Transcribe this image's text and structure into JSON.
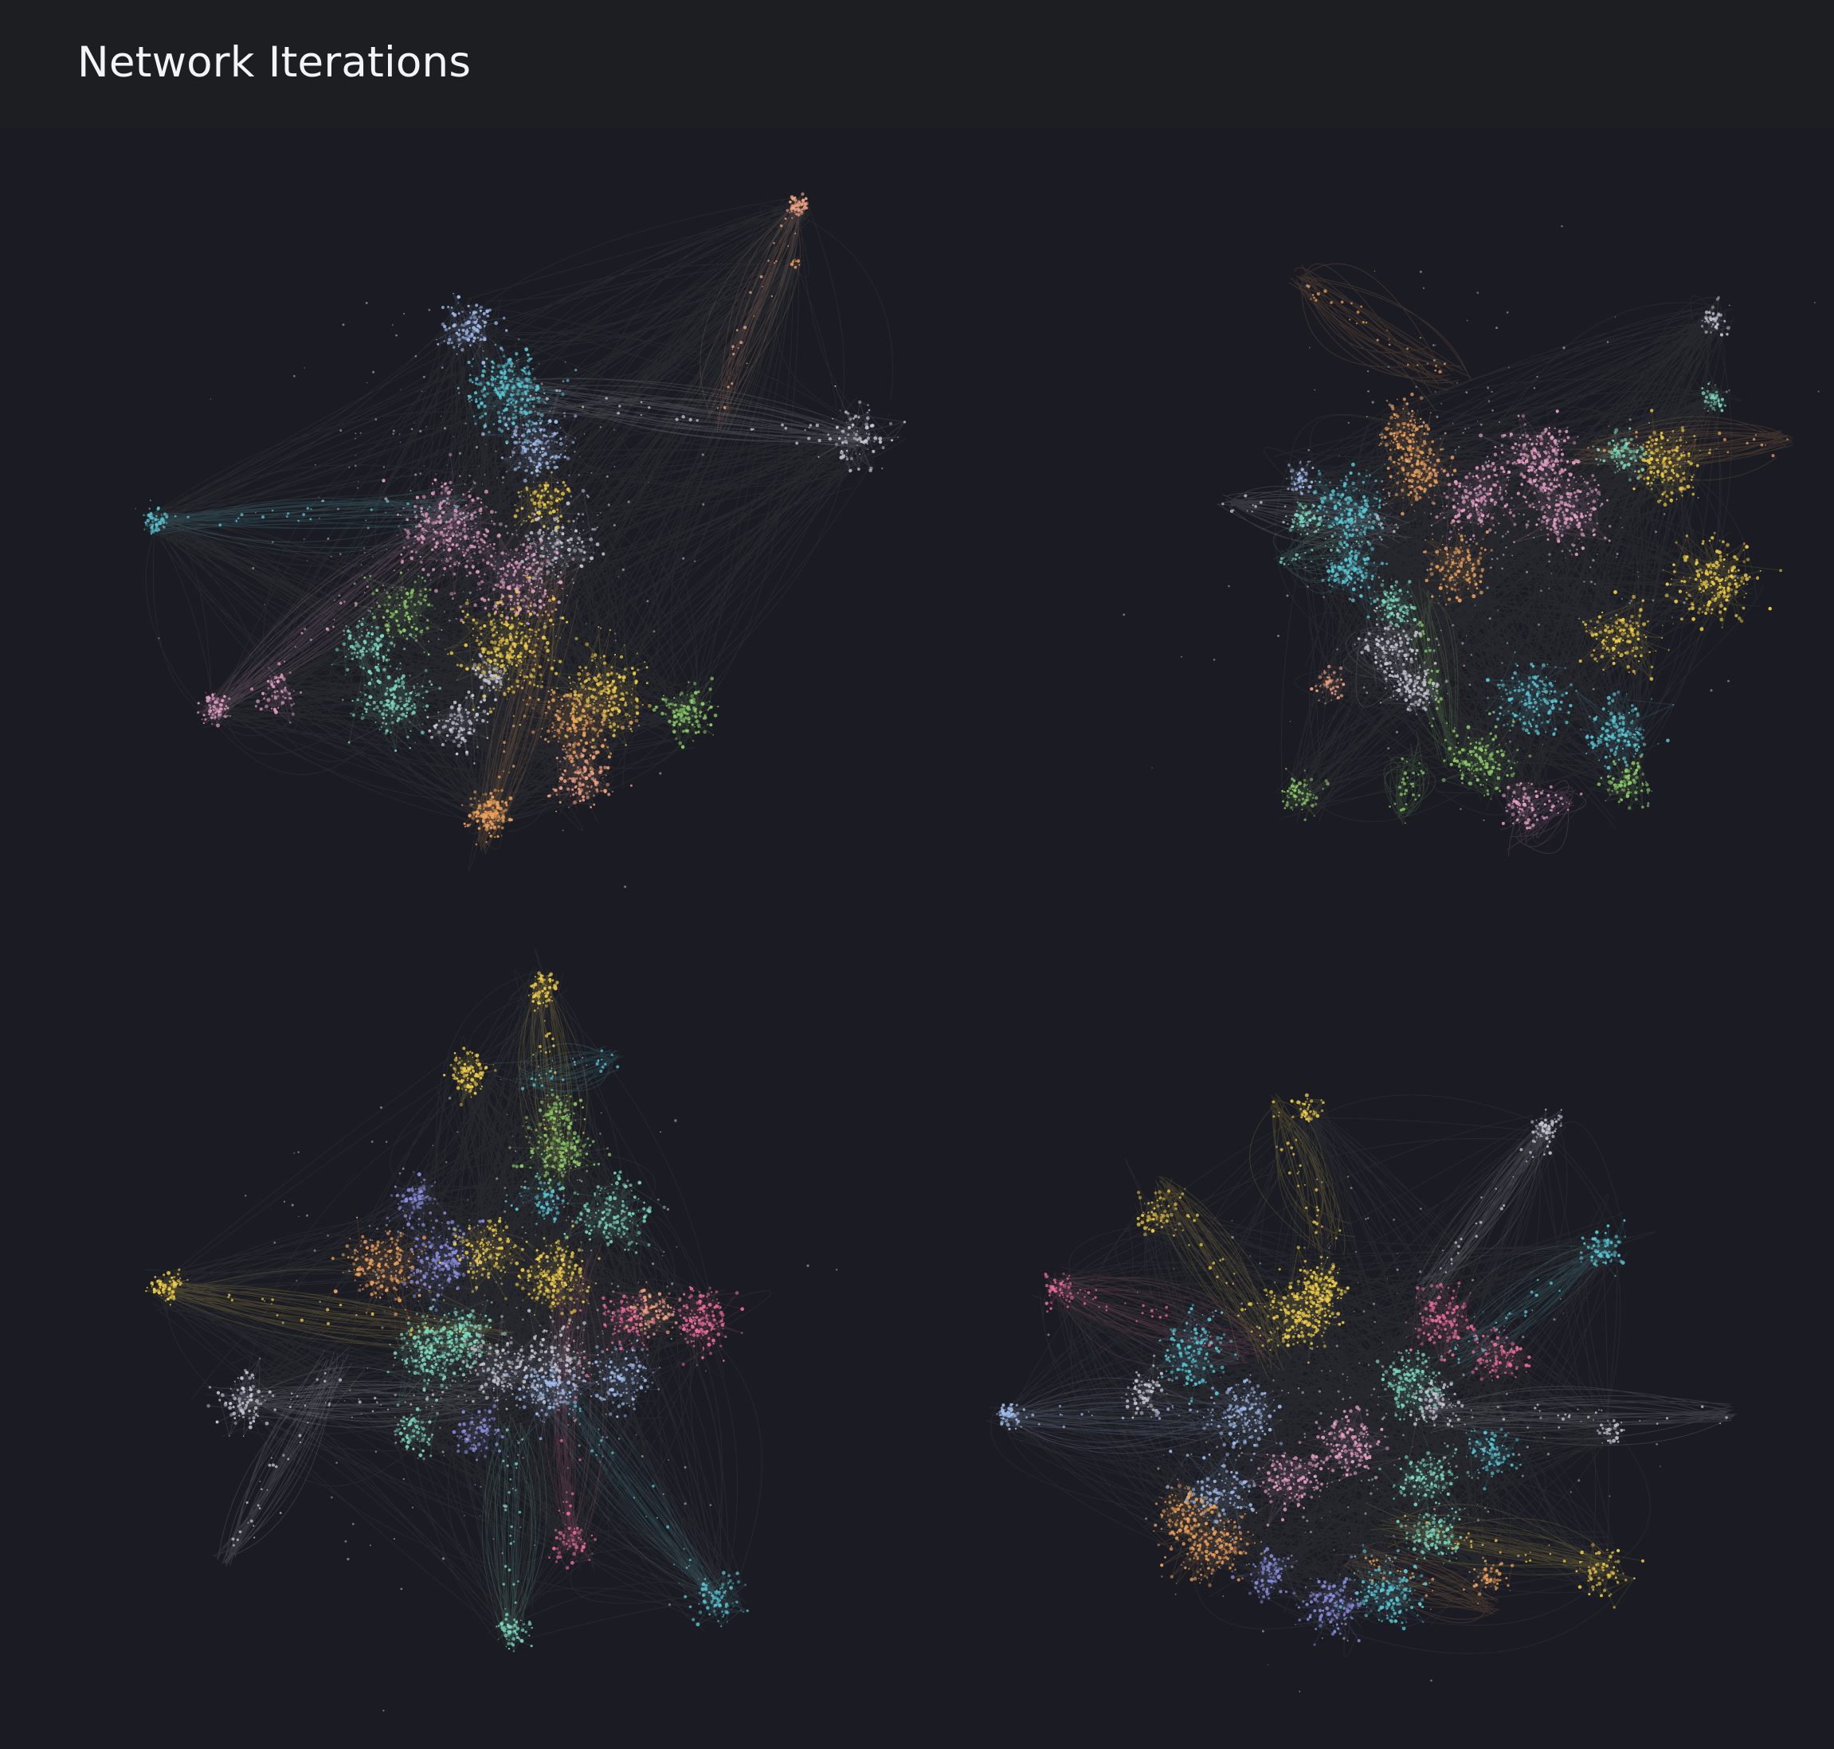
{
  "header": {
    "title": "Network Iterations"
  },
  "palette": {
    "background": "#1b1c23",
    "header_background": "#1d1e22",
    "edge_color": "#c9c4be",
    "clusters": [
      "#5bc8d6",
      "#e9a1c8",
      "#f2cf4a",
      "#f0a35c",
      "#8fd16a",
      "#7fdcc0",
      "#a3bff0",
      "#c9c8d6",
      "#f3a585",
      "#8c8fe0",
      "#ef6f9b"
    ]
  },
  "networks": [
    {
      "id": "iteration-1",
      "view": "force-directed network graph"
    },
    {
      "id": "iteration-2",
      "view": "force-directed network graph"
    },
    {
      "id": "iteration-3",
      "view": "force-directed network graph"
    },
    {
      "id": "iteration-4",
      "view": "force-directed network graph"
    }
  ]
}
